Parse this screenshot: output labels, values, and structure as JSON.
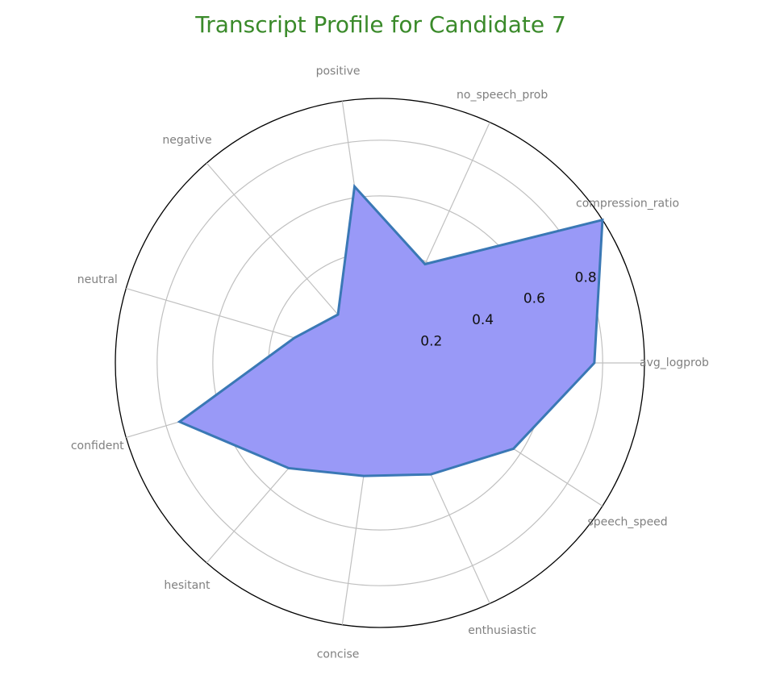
{
  "chart_data": {
    "type": "radar",
    "title": "Transcript Profile for Candidate 7",
    "categories": [
      "avg_logprob",
      "compression_ratio",
      "no_speech_prob",
      "positive",
      "negative",
      "neutral",
      "confident",
      "hesitant",
      "concise",
      "enthusiastic",
      "speech_speed"
    ],
    "series": [
      {
        "values": [
          0.77,
          0.95,
          0.39,
          0.64,
          0.23,
          0.32,
          0.75,
          0.5,
          0.41,
          0.44,
          0.57
        ]
      }
    ],
    "rlim": [
      0,
      0.95
    ],
    "rticks": [
      0.2,
      0.4,
      0.6,
      0.8
    ],
    "rtick_labels": [
      "0.2",
      "0.4",
      "0.6",
      "0.8"
    ],
    "grid": true
  },
  "colors": {
    "title": "#3a8a2a",
    "fill": "#9999f7",
    "line": "#3a78b5",
    "grid": "#c0c0c0",
    "outer_circle": "#000000",
    "axis_label": "#808080"
  }
}
